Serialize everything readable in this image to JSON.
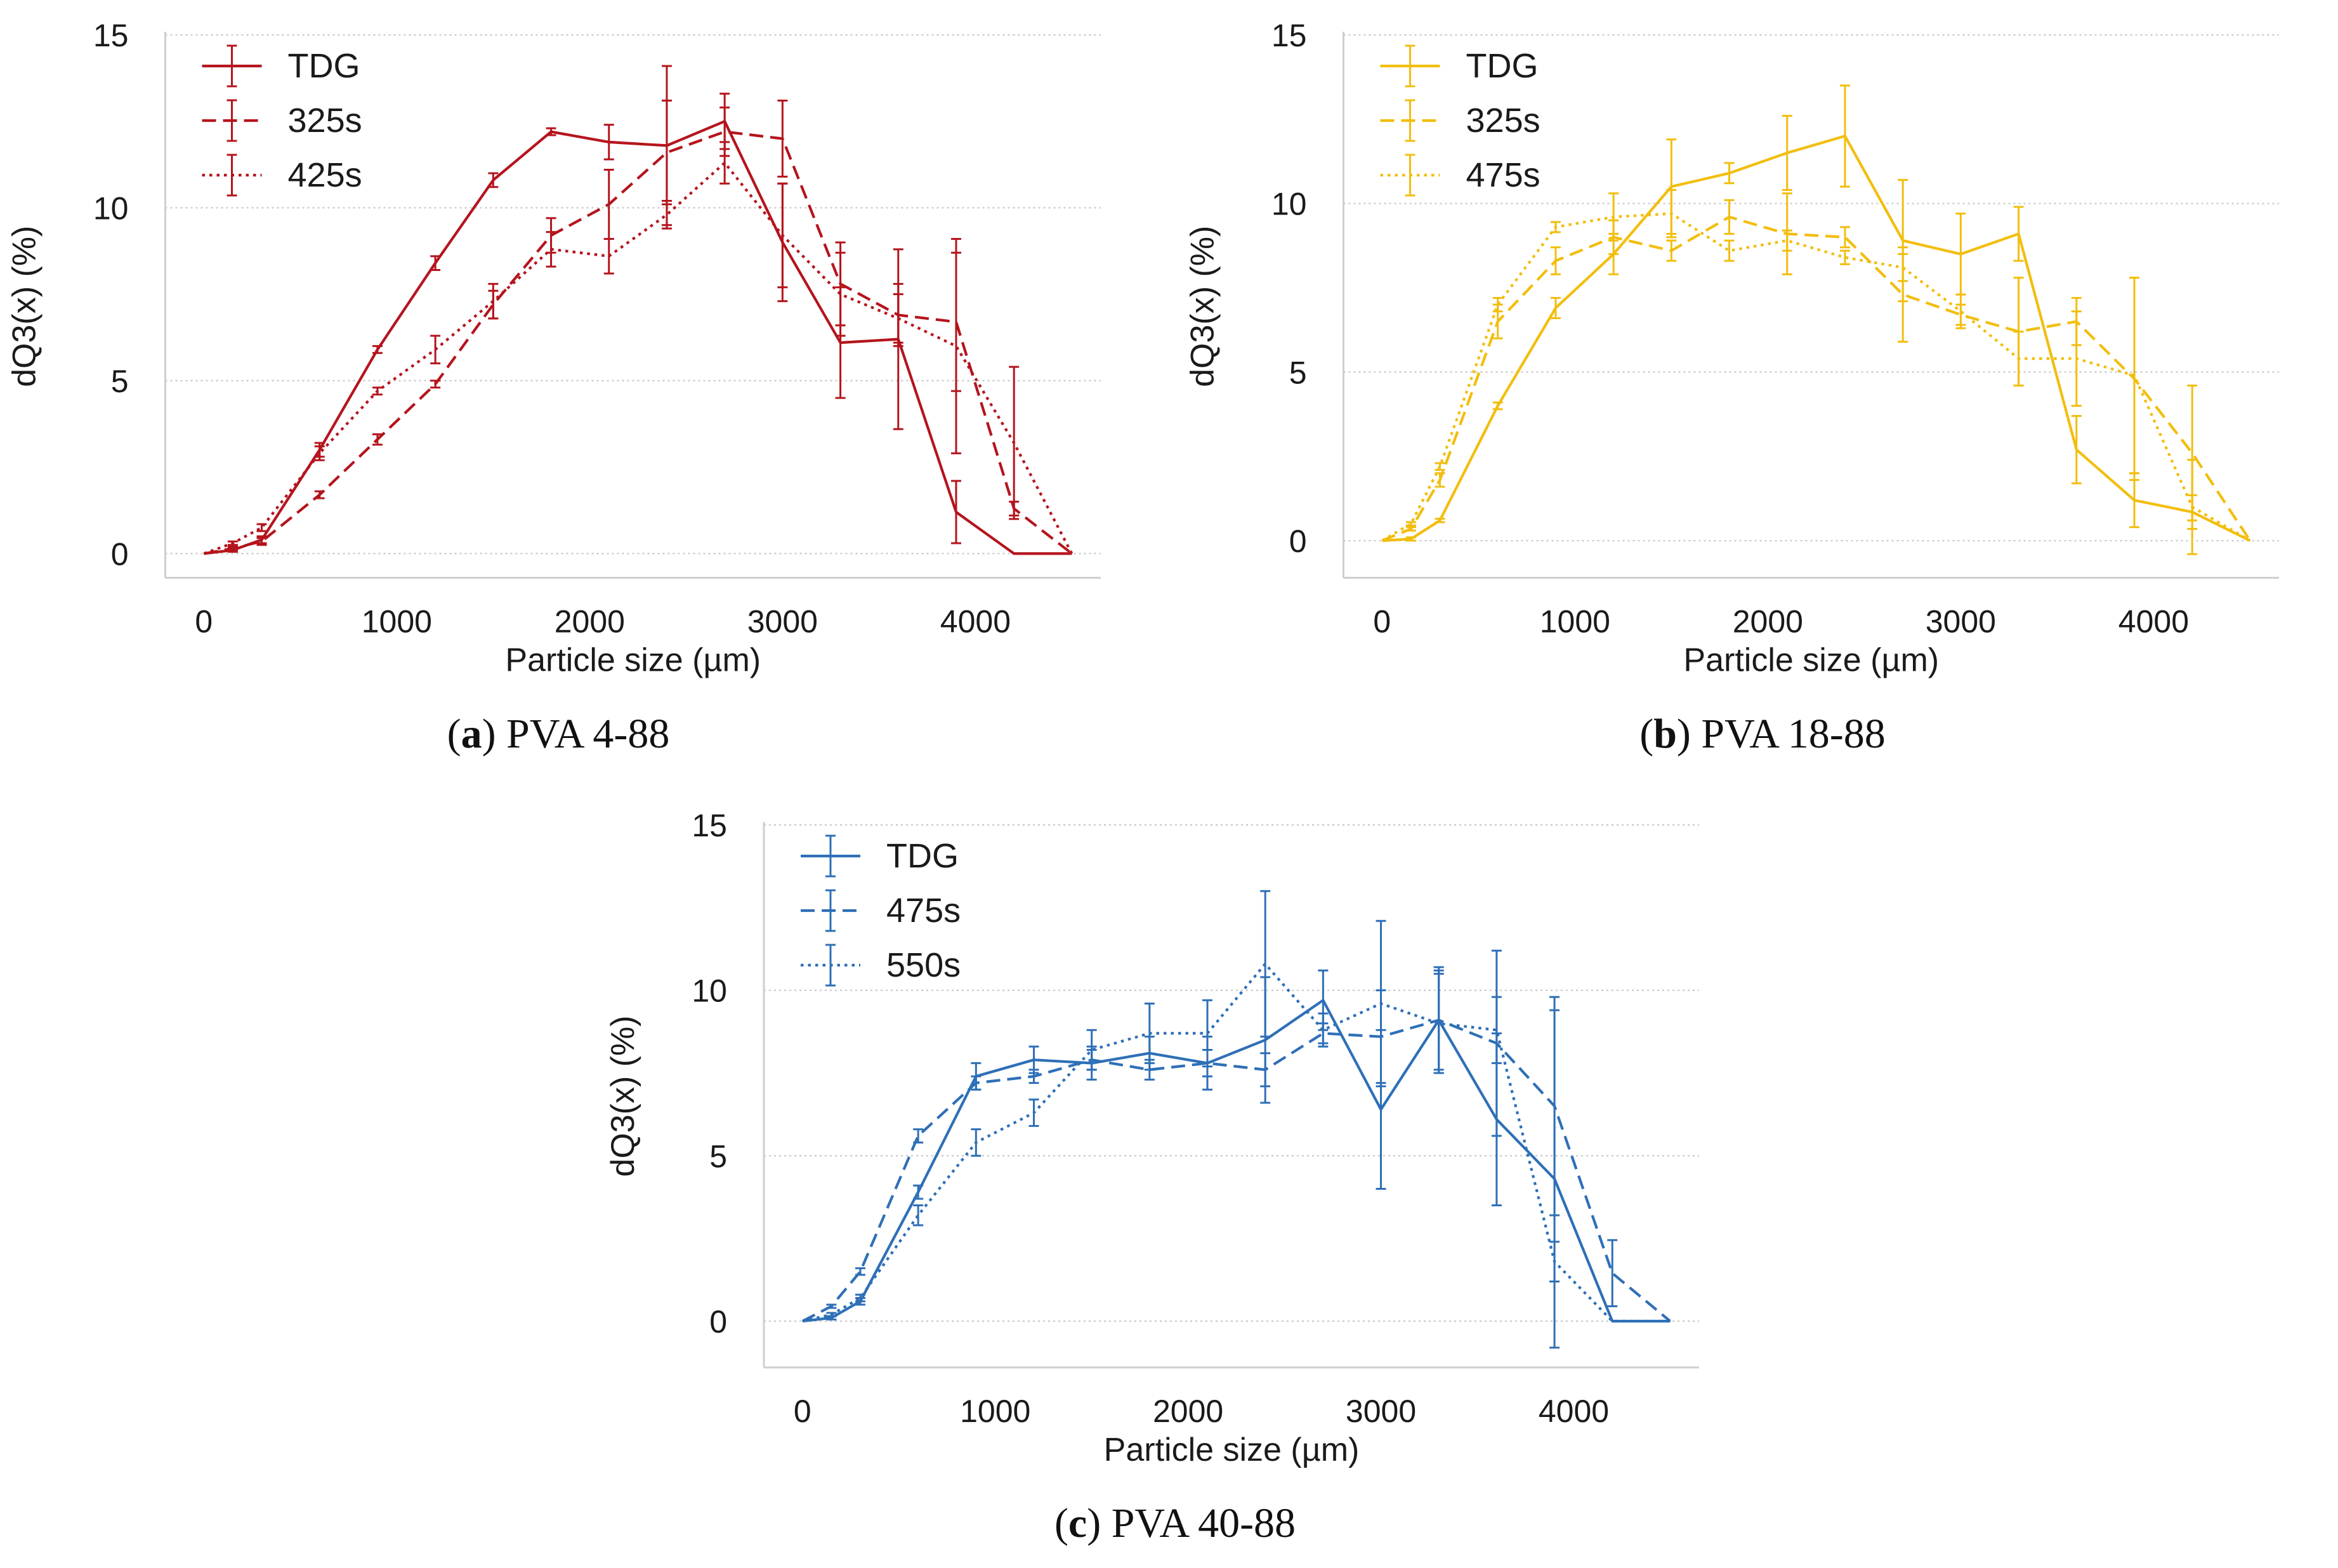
{
  "chart_data": [
    {
      "type": "line",
      "panel": "a",
      "caption": {
        "letter": "a",
        "text": "PVA 4-88"
      },
      "color": "#b5141d",
      "xlabel": "Particle size (µm)",
      "ylabel": "dQ3(x) (%)",
      "xlim": [
        -200,
        4650
      ],
      "ylim": [
        -0.7,
        15
      ],
      "xticks": [
        0,
        1000,
        2000,
        3000,
        4000
      ],
      "yticks": [
        0,
        5,
        10,
        15
      ],
      "grid": "horizontal dotted",
      "legend_position": "top-left",
      "series": [
        {
          "name": "TDG",
          "linestyle": "solid",
          "x": [
            0,
            150,
            300,
            600,
            900,
            1200,
            1500,
            1800,
            2100,
            2400,
            2700,
            3000,
            3300,
            3600,
            3900,
            4200,
            4500
          ],
          "y": [
            0,
            0.1,
            0.4,
            3.0,
            5.9,
            8.4,
            10.8,
            12.2,
            11.9,
            11.8,
            12.5,
            9.0,
            6.1,
            6.2,
            1.2,
            0,
            0
          ],
          "err": [
            0,
            0.05,
            0.1,
            0.2,
            0.1,
            0.2,
            0.2,
            0.1,
            0.5,
            2.3,
            0.8,
            1.7,
            1.6,
            2.6,
            0.9,
            0,
            0
          ]
        },
        {
          "name": "325s",
          "linestyle": "dashed",
          "x": [
            0,
            150,
            300,
            600,
            900,
            1200,
            1500,
            1800,
            2100,
            2400,
            2700,
            3000,
            3300,
            3600,
            3900,
            4200,
            4500
          ],
          "y": [
            0,
            0.15,
            0.35,
            1.7,
            3.3,
            4.9,
            7.2,
            9.2,
            10.1,
            11.6,
            12.2,
            12.0,
            7.8,
            6.9,
            6.7,
            1.3,
            0
          ],
          "err": [
            0,
            0.05,
            0.1,
            0.1,
            0.15,
            0.1,
            0.4,
            0.5,
            1.0,
            1.5,
            0.7,
            1.1,
            1.2,
            0.9,
            2.0,
            0.2,
            0
          ]
        },
        {
          "name": "425s",
          "linestyle": "dotted",
          "x": [
            0,
            150,
            300,
            600,
            900,
            1200,
            1500,
            1800,
            2100,
            2400,
            2700,
            3000,
            3300,
            3600,
            3900,
            4200,
            4500
          ],
          "y": [
            0,
            0.3,
            0.75,
            2.9,
            4.7,
            5.9,
            7.3,
            8.8,
            8.6,
            9.8,
            11.3,
            9.2,
            7.5,
            6.8,
            6.0,
            3.2,
            0
          ],
          "err": [
            0,
            0.05,
            0.1,
            0.2,
            0.1,
            0.4,
            0.5,
            0.5,
            0.5,
            0.4,
            0.6,
            1.5,
            1.2,
            0.7,
            3.1,
            2.2,
            0
          ]
        }
      ]
    },
    {
      "type": "line",
      "panel": "b",
      "caption": {
        "letter": "b",
        "text": "PVA 18-88"
      },
      "color": "#f2be0e",
      "xlabel": "Particle size (µm)",
      "ylabel": "dQ3(x) (%)",
      "xlim": [
        -200,
        4650
      ],
      "ylim": [
        -1.1,
        15
      ],
      "xticks": [
        0,
        1000,
        2000,
        3000,
        4000
      ],
      "yticks": [
        0,
        5,
        10,
        15
      ],
      "grid": "horizontal dotted",
      "legend_position": "top-left",
      "series": [
        {
          "name": "TDG",
          "linestyle": "solid",
          "x": [
            0,
            150,
            300,
            600,
            900,
            1200,
            1500,
            1800,
            2100,
            2400,
            2700,
            3000,
            3300,
            3600,
            3900,
            4200,
            4500
          ],
          "y": [
            0,
            0.05,
            0.6,
            4.0,
            6.9,
            8.5,
            10.5,
            10.9,
            11.5,
            12.0,
            8.9,
            8.5,
            9.1,
            2.7,
            1.2,
            0.85,
            0
          ],
          "err": [
            0,
            0.05,
            0.05,
            0.1,
            0.3,
            0.6,
            1.4,
            0.3,
            1.1,
            1.5,
            1.8,
            1.2,
            0.8,
            1.0,
            0.8,
            0.5,
            0
          ]
        },
        {
          "name": "325s",
          "linestyle": "dashed",
          "x": [
            0,
            150,
            300,
            600,
            900,
            1200,
            1500,
            1800,
            2100,
            2400,
            2700,
            3000,
            3300,
            3600,
            3900,
            4200,
            4500
          ],
          "y": [
            0,
            0.35,
            1.8,
            6.5,
            8.3,
            9.0,
            8.6,
            9.6,
            9.1,
            9.0,
            7.3,
            6.7,
            6.2,
            6.5,
            4.8,
            2.6,
            0
          ],
          "err": [
            0,
            0.05,
            0.2,
            0.5,
            0.4,
            0.5,
            0.3,
            0.5,
            1.2,
            0.3,
            1.4,
            0.3,
            1.6,
            0.7,
            3.0,
            2.0,
            0
          ]
        },
        {
          "name": "475s",
          "linestyle": "dotted",
          "x": [
            0,
            150,
            300,
            600,
            900,
            1200,
            1500,
            1800,
            2100,
            2400,
            2700,
            3000,
            3300,
            3600,
            3900,
            4200,
            4500
          ],
          "y": [
            0,
            0.5,
            2.2,
            7.0,
            9.3,
            9.6,
            9.7,
            8.6,
            8.9,
            8.4,
            8.1,
            6.8,
            5.4,
            5.4,
            4.9,
            1.0,
            0
          ],
          "err": [
            0,
            0.05,
            0.1,
            0.2,
            0.15,
            0.7,
            0.7,
            0.3,
            0.3,
            0.2,
            0.4,
            0.5,
            0.8,
            1.4,
            2.9,
            1.4,
            0
          ]
        }
      ]
    },
    {
      "type": "line",
      "panel": "c",
      "caption": {
        "letter": "c",
        "text": "PVA 40-88"
      },
      "color": "#2e6fb7",
      "xlabel": "Particle size (µm)",
      "ylabel": "dQ3(x) (%)",
      "xlim": [
        -200,
        4650
      ],
      "ylim": [
        -1.4,
        15
      ],
      "xticks": [
        0,
        1000,
        2000,
        3000,
        4000
      ],
      "yticks": [
        0,
        5,
        10,
        15
      ],
      "grid": "horizontal dotted",
      "legend_position": "top-left",
      "series": [
        {
          "name": "TDG",
          "linestyle": "solid",
          "x": [
            0,
            150,
            300,
            600,
            900,
            1200,
            1500,
            1800,
            2100,
            2400,
            2700,
            3000,
            3300,
            3600,
            3900,
            4200,
            4500
          ],
          "y": [
            0,
            0.1,
            0.6,
            3.9,
            7.4,
            7.9,
            7.8,
            8.1,
            7.8,
            8.5,
            9.7,
            6.4,
            9.1,
            6.1,
            4.3,
            0,
            0
          ],
          "err": [
            0,
            0.05,
            0.1,
            0.2,
            0.4,
            0.4,
            0.5,
            0.5,
            0.8,
            1.9,
            0.9,
            2.4,
            1.5,
            2.6,
            5.1,
            0,
            0
          ]
        },
        {
          "name": "475s",
          "linestyle": "dashed",
          "x": [
            0,
            150,
            300,
            600,
            900,
            1200,
            1500,
            1800,
            2100,
            2400,
            2700,
            3000,
            3300,
            3600,
            3900,
            4200,
            4500
          ],
          "y": [
            0,
            0.45,
            1.5,
            5.6,
            7.2,
            7.4,
            7.9,
            7.6,
            7.8,
            7.6,
            8.7,
            8.6,
            9.1,
            8.4,
            6.5,
            1.45,
            0
          ],
          "err": [
            0,
            0.05,
            0.1,
            0.2,
            0.2,
            0.2,
            0.3,
            0.3,
            0.4,
            0.5,
            0.3,
            1.4,
            1.6,
            2.8,
            3.3,
            1.0,
            0
          ]
        },
        {
          "name": "550s",
          "linestyle": "dotted",
          "x": [
            0,
            150,
            300,
            600,
            900,
            1200,
            1500,
            1800,
            2100,
            2400,
            2700,
            3000,
            3300,
            3600,
            3900,
            4200,
            4500
          ],
          "y": [
            0,
            0.2,
            0.7,
            3.2,
            5.4,
            6.3,
            8.2,
            8.7,
            8.7,
            10.8,
            8.8,
            9.6,
            9.0,
            8.8,
            1.8,
            0,
            0
          ],
          "err": [
            0,
            0.05,
            0.1,
            0.3,
            0.4,
            0.4,
            0.6,
            0.9,
            1.0,
            2.2,
            0.5,
            2.5,
            1.5,
            1.0,
            0.6,
            0,
            0
          ]
        }
      ]
    }
  ]
}
